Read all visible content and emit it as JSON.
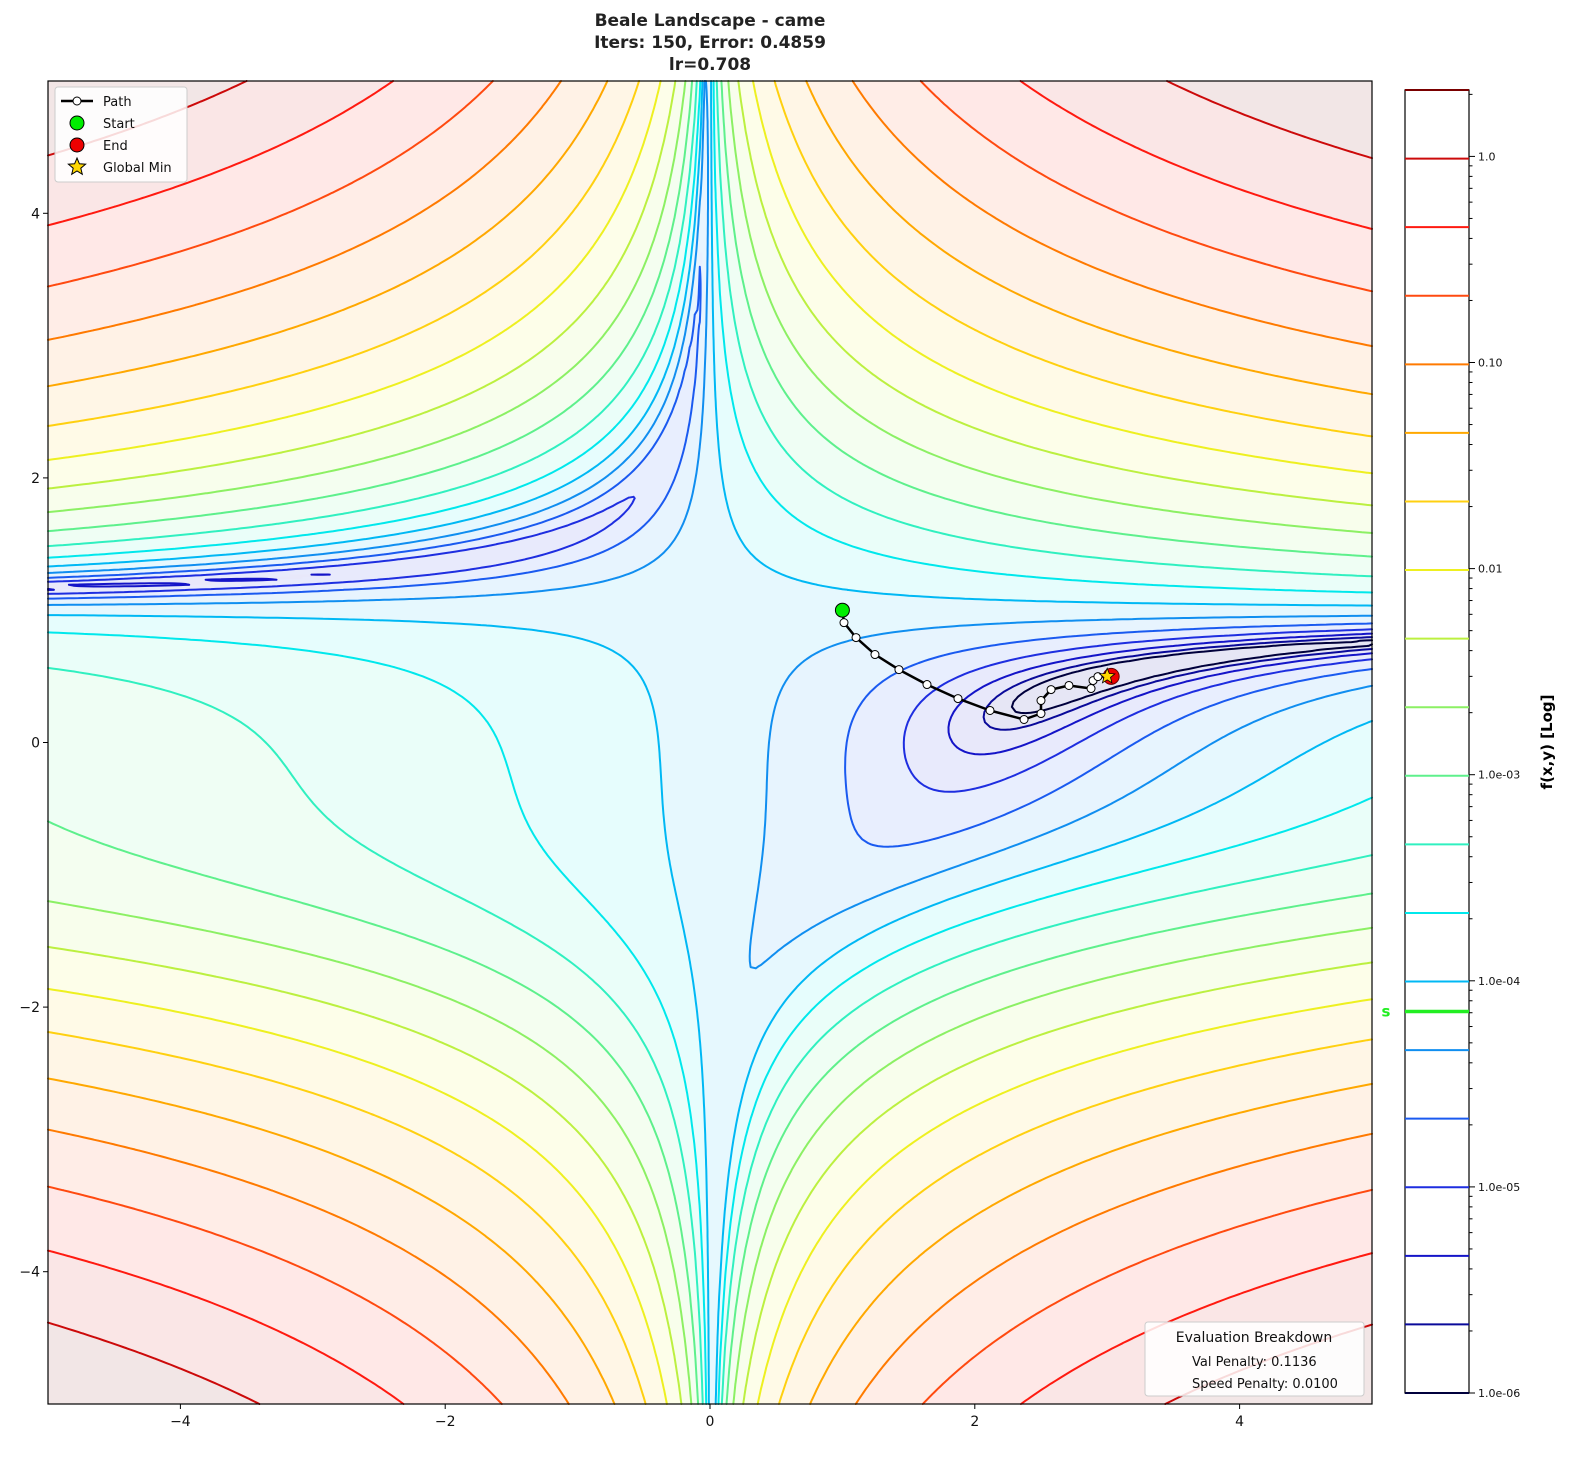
{
  "chart_data": {
    "type": "contour",
    "function": "Beale",
    "title_lines": [
      "Beale Landscape - came",
      "Iters: 150, Error: 0.4859",
      "lr=0.708"
    ],
    "xlim": [
      -5,
      5
    ],
    "ylim": [
      -5,
      5
    ],
    "x_ticks": [
      "−4",
      "−2",
      "0",
      "2",
      "4"
    ],
    "x_tick_values": [
      -4,
      -2,
      0,
      2,
      4
    ],
    "y_ticks": [
      "−4",
      "−2",
      "0",
      "2",
      "4"
    ],
    "y_tick_values": [
      -4,
      -2,
      0,
      2,
      4
    ],
    "levels": {
      "scale": "log",
      "min": 1e-06,
      "max": 2.1,
      "count": 20
    },
    "level_colors": [
      "#00003c",
      "#0a0a9a",
      "#1414c8",
      "#1e2ee0",
      "#1a5af0",
      "#108ef0",
      "#00b8f4",
      "#00e8ec",
      "#30f0c0",
      "#5ef08c",
      "#8cf064",
      "#bcf040",
      "#eef020",
      "#ffd010",
      "#ffa800",
      "#ff7a00",
      "#ff4a10",
      "#ff1a10",
      "#cc0a0a",
      "#7a0000"
    ],
    "colorbar": {
      "label": "f(x,y) [Log]",
      "tick_labels": [
        "1.0e-06",
        "1.0e-05",
        "1.0e-04",
        "1.0e-03",
        "0.01",
        "0.10",
        "1.0"
      ],
      "tick_values": [
        1e-06,
        1e-05,
        0.0001,
        0.001,
        0.01,
        0.1,
        1.0
      ],
      "start_marker": {
        "label": "s",
        "value": 7.1e-05,
        "color": "#22ee22"
      }
    },
    "path": {
      "x": [
        1.0,
        1.012,
        1.103,
        1.246,
        1.427,
        1.639,
        1.873,
        2.115,
        2.372,
        2.5,
        2.5,
        2.576,
        2.711,
        2.878,
        2.893,
        2.93,
        3.03
      ],
      "y": [
        1.0,
        0.906,
        0.793,
        0.665,
        0.551,
        0.438,
        0.332,
        0.242,
        0.174,
        0.219,
        0.317,
        0.4,
        0.431,
        0.408,
        0.468,
        0.498,
        0.5
      ]
    },
    "start": {
      "x": 1.0,
      "y": 1.0,
      "color": "#00ee00"
    },
    "end": {
      "x": 3.03,
      "y": 0.5,
      "color": "#ee0000"
    },
    "global_min": {
      "x": 3.0,
      "y": 0.5,
      "color": "#ffd700"
    },
    "legend": {
      "placement": "top-left",
      "entries": [
        "Path",
        "Start",
        "End",
        "Global Min"
      ]
    },
    "evaluation": {
      "title": "Evaluation Breakdown",
      "lines": [
        "Val Penalty: 0.1136",
        "Speed Penalty: 0.0100"
      ]
    }
  }
}
